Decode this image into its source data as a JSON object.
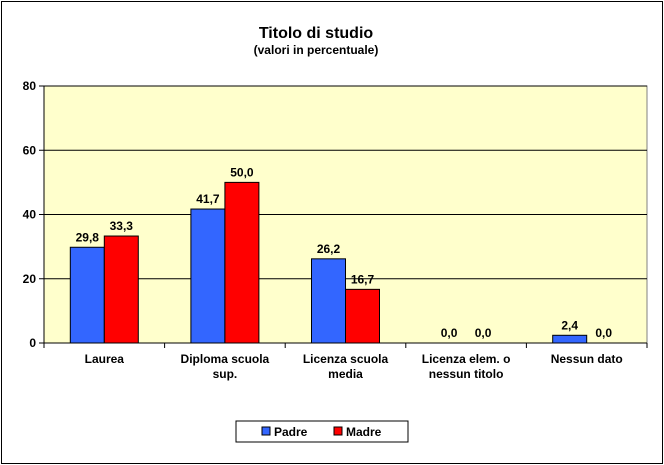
{
  "chart_data": {
    "type": "bar",
    "title": "Titolo di studio",
    "subtitle": "(valori in percentuale)",
    "categories": [
      [
        "Laurea"
      ],
      [
        "Diploma scuola",
        "sup."
      ],
      [
        "Licenza scuola",
        "media"
      ],
      [
        "Licenza elem. o",
        "nessun titolo"
      ],
      [
        "Nessun dato"
      ]
    ],
    "series": [
      {
        "name": "Padre",
        "color": "#3366ff",
        "values": [
          29.8,
          41.7,
          26.2,
          0.0,
          2.4
        ],
        "labels": [
          "29,8",
          "41,7",
          "26,2",
          "0,0",
          "2,4"
        ]
      },
      {
        "name": "Madre",
        "color": "#ff0000",
        "values": [
          33.3,
          50.0,
          16.7,
          0.0,
          0.0
        ],
        "labels": [
          "33,3",
          "50,0",
          "16,7",
          "0,0",
          "0,0"
        ]
      }
    ],
    "ylim": [
      0,
      80
    ],
    "yticks": [
      0,
      20,
      40,
      60,
      80
    ],
    "grid": true,
    "plot_background": "#ffffcc",
    "legend_position": "bottom-center"
  }
}
